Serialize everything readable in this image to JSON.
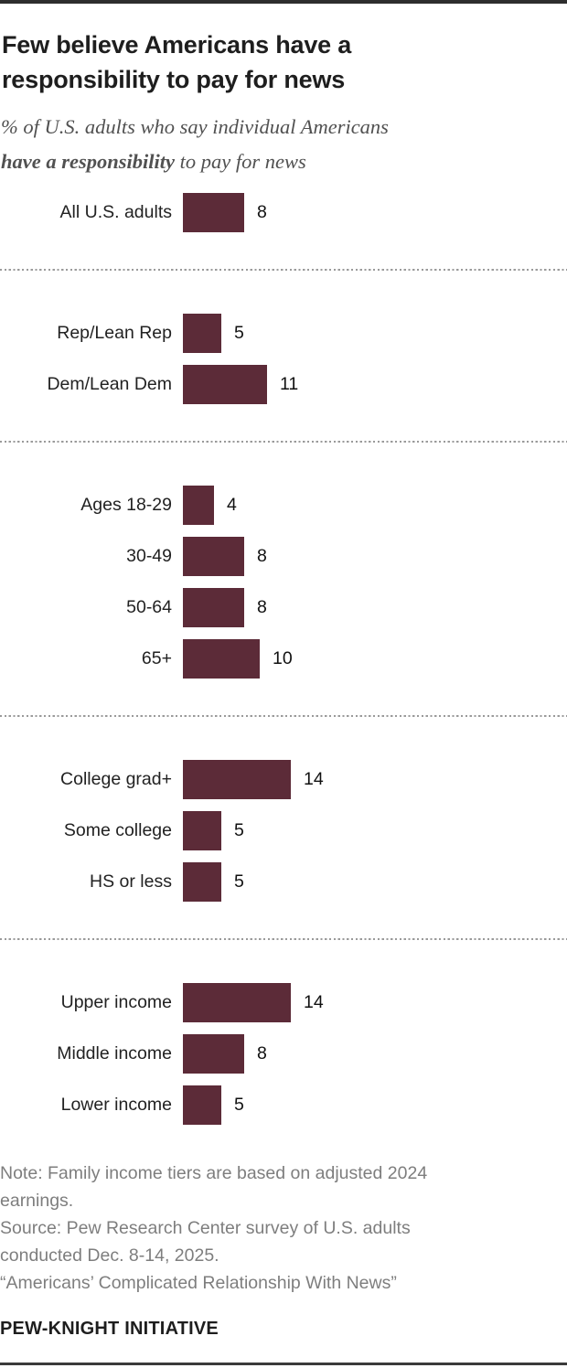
{
  "header": {
    "title_line1": "Few believe Americans have a",
    "title_line2": "responsibility to pay for news",
    "subtitle_line1": "% of U.S. adults who say individual Americans",
    "subtitle_line2_bold": "have a responsibility",
    "subtitle_line2_rest": " to pay for news"
  },
  "chart_data": {
    "type": "bar",
    "orientation": "horizontal",
    "unit": "% of U.S. adults",
    "title": "Few believe Americans have a responsibility to pay for news",
    "subtitle": "% of U.S. adults who say individual Americans have a responsibility to pay for news",
    "bar_color": "#5C2B38",
    "value_range": [
      0,
      50
    ],
    "grid": false,
    "legend": false,
    "groups": [
      {
        "name": "overall",
        "rows": [
          {
            "label": "All U.S. adults",
            "value": 8
          }
        ]
      },
      {
        "name": "party",
        "rows": [
          {
            "label": "Rep/Lean Rep",
            "value": 5
          },
          {
            "label": "Dem/Lean Dem",
            "value": 11
          }
        ]
      },
      {
        "name": "age",
        "rows": [
          {
            "label": "Ages 18-29",
            "value": 4
          },
          {
            "label": "30-49",
            "value": 8
          },
          {
            "label": "50-64",
            "value": 8
          },
          {
            "label": "65+",
            "value": 10
          }
        ]
      },
      {
        "name": "education",
        "rows": [
          {
            "label": "College grad+",
            "value": 14
          },
          {
            "label": "Some college",
            "value": 5
          },
          {
            "label": "HS or less",
            "value": 5
          }
        ]
      },
      {
        "name": "income",
        "rows": [
          {
            "label": "Upper income",
            "value": 14
          },
          {
            "label": "Middle income",
            "value": 8
          },
          {
            "label": "Lower income",
            "value": 5
          }
        ]
      }
    ]
  },
  "footer": {
    "note_lines": [
      "Note: Family income tiers are based on adjusted 2024",
      "earnings.",
      "Source: Pew Research Center survey of U.S. adults",
      "conducted Dec. 8-14, 2025.",
      "“Americans’ Complicated Relationship With News”"
    ],
    "brand": "PEW-KNIGHT INITIATIVE"
  }
}
